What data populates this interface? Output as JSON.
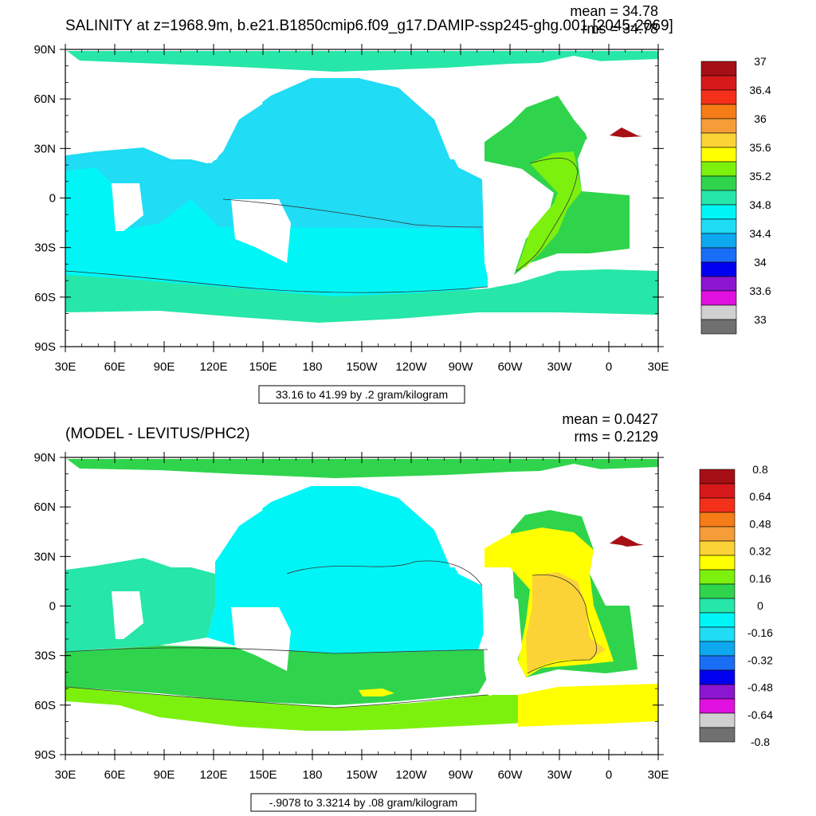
{
  "panels": [
    {
      "title": "SALINITY at z=1968.9m, b.e21.B1850cmip6.f09_g17.DAMIP-ssp245-ghg.001 [2045-2069]",
      "mean_text": "mean = 34.78",
      "rms_text": "rms = 34.78",
      "range_text": "33.16 to 41.99 by .2 gram/kilogram",
      "lat_labels": [
        "90N",
        "60N",
        "30N",
        "0",
        "30S",
        "60S",
        "90S"
      ],
      "lon_labels": [
        "30E",
        "60E",
        "90E",
        "120E",
        "150E",
        "180",
        "150W",
        "120W",
        "90W",
        "60W",
        "30W",
        "0",
        "30E"
      ],
      "colorbar": {
        "colors": [
          "#a50f15",
          "#d7191c",
          "#f4301a",
          "#f57c16",
          "#f59d38",
          "#fbd337",
          "#ffff00",
          "#7cf10e",
          "#2fd44c",
          "#26e6a8",
          "#00f6f6",
          "#20dcf5",
          "#0ea8f0",
          "#1a6ef5",
          "#0000f0",
          "#8a16cf",
          "#e010e0",
          "#d0d0d0",
          "#707070"
        ],
        "labels": [
          "37",
          "36.4",
          "36",
          "35.6",
          "35.2",
          "34.8",
          "34.4",
          "34",
          "33.6",
          "33"
        ]
      }
    },
    {
      "title": "(MODEL - LEVITUS/PHC2)",
      "mean_text": "mean = 0.0427",
      "rms_text": "rms = 0.2129",
      "range_text": "-.9078 to 3.3214 by .08 gram/kilogram",
      "lat_labels": [
        "90N",
        "60N",
        "30N",
        "0",
        "30S",
        "60S",
        "90S"
      ],
      "lon_labels": [
        "30E",
        "60E",
        "90E",
        "120E",
        "150E",
        "180",
        "150W",
        "120W",
        "90W",
        "60W",
        "30W",
        "0",
        "30E"
      ],
      "colorbar": {
        "colors": [
          "#a50f15",
          "#d7191c",
          "#f4301a",
          "#f57c16",
          "#f59d38",
          "#fbd337",
          "#ffff00",
          "#7cf10e",
          "#2fd44c",
          "#26e6a8",
          "#00f6f6",
          "#20dcf5",
          "#0ea8f0",
          "#1a6ef5",
          "#0000f0",
          "#8a16cf",
          "#e010e0",
          "#d0d0d0",
          "#707070"
        ],
        "labels": [
          "0.8",
          "0.64",
          "0.48",
          "0.32",
          "0.16",
          "0",
          "-0.16",
          "-0.32",
          "-0.48",
          "-0.64",
          "-0.8"
        ]
      }
    }
  ],
  "colors": {
    "top_main": "#20dcf5",
    "top_alt": "#00f6f6",
    "top_atlantic": "#2fd44c",
    "top_med": "#a50f15",
    "bot_pacific": "#00f6f6",
    "bot_south": "#2fd44c",
    "bot_ocean": "#7cf10e",
    "bot_indian": "#26e6a8",
    "bot_yellow": "#ffff00",
    "bot_orange": "#fbd337",
    "bot_med": "#a50f15"
  }
}
